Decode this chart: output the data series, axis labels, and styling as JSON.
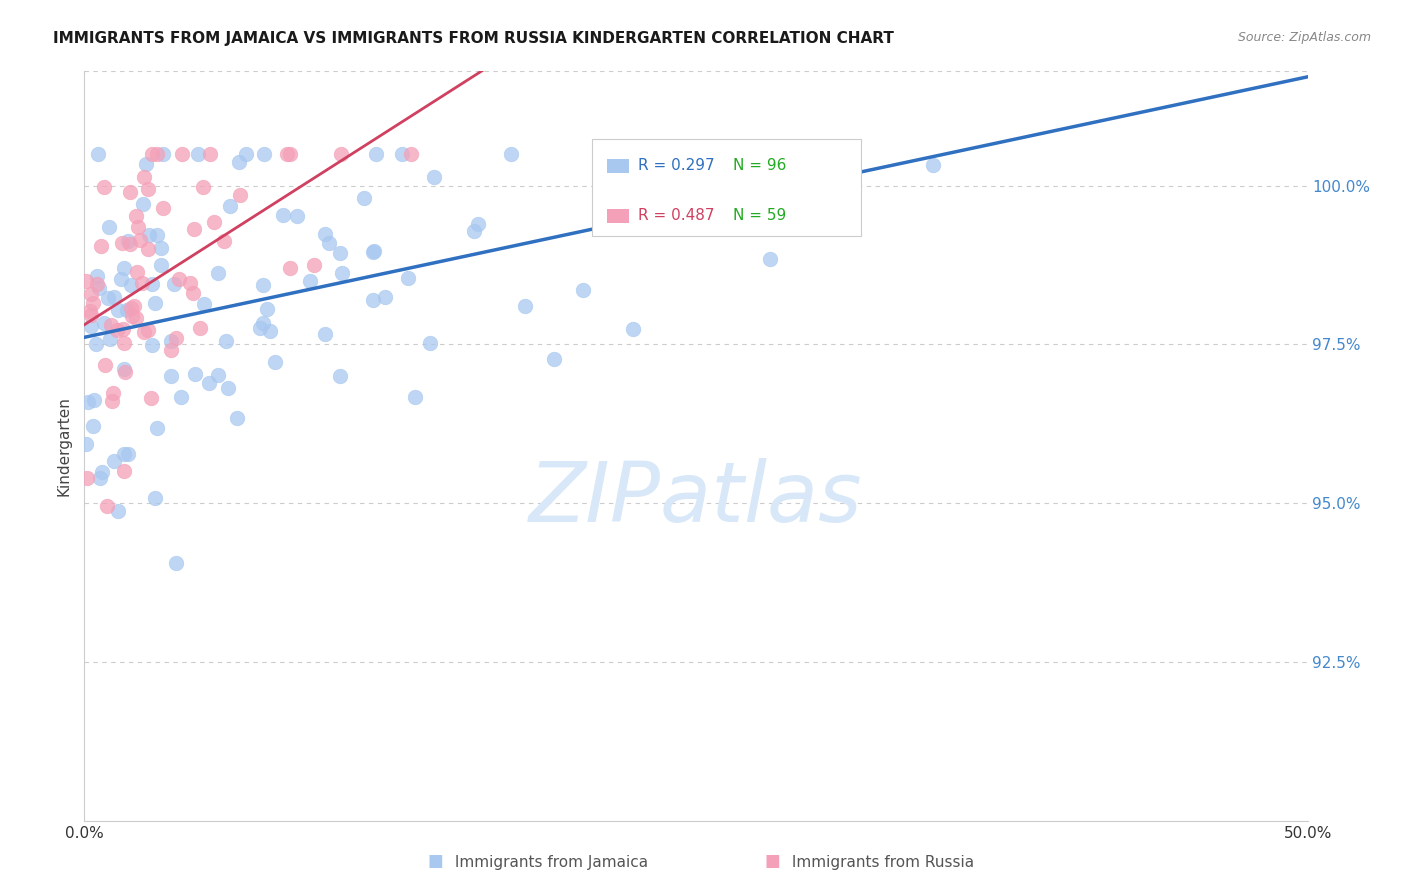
{
  "title": "IMMIGRANTS FROM JAMAICA VS IMMIGRANTS FROM RUSSIA KINDERGARTEN CORRELATION CHART",
  "source": "Source: ZipAtlas.com",
  "ylabel": "Kindergarten",
  "xlim": [
    0.0,
    50.0
  ],
  "ylim": [
    90.0,
    101.8
  ],
  "yticks": [
    92.5,
    95.0,
    97.5,
    100.0
  ],
  "ytick_labels": [
    "92.5%",
    "95.0%",
    "97.5%",
    "100.0%"
  ],
  "xticks": [
    0.0,
    10.0,
    20.0,
    30.0,
    40.0,
    50.0
  ],
  "xtick_labels": [
    "0.0%",
    "",
    "",
    "",
    "",
    "50.0%"
  ],
  "jamaica_color": "#A8C8F0",
  "russia_color": "#F4A0B8",
  "jamaica_line_color": "#3070C0",
  "russia_line_color": "#D04060",
  "jamaica_R": 0.297,
  "jamaica_N": 96,
  "russia_R": 0.487,
  "russia_N": 59,
  "background_color": "#ffffff",
  "grid_color": "#cccccc",
  "ytick_color": "#4488CC",
  "watermark_color": "#D8E8F8"
}
